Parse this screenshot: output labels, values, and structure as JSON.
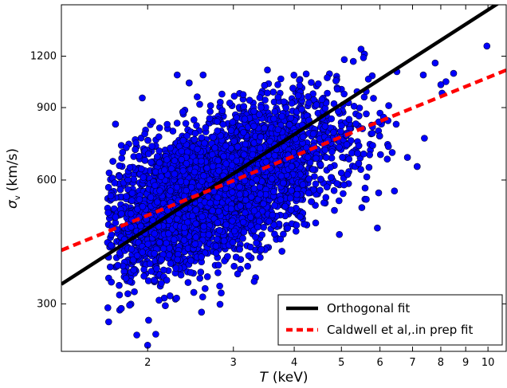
{
  "chart_data": {
    "type": "scatter",
    "title": "",
    "xlabel_symbol": "T",
    "xlabel_unit": "(keV)",
    "ylabel_symbol": "σ",
    "ylabel_sub": "v",
    "ylabel_unit": "(km/s)",
    "x_scale": "log",
    "y_scale": "log",
    "xlim": [
      1.33,
      10.9
    ],
    "ylim": [
      230,
      1600
    ],
    "x_ticks": [
      2,
      3,
      4,
      5,
      6,
      7,
      8,
      9,
      10
    ],
    "x_tick_labels": [
      "2",
      "3",
      "4",
      "5",
      "6",
      "7",
      "8",
      "9",
      "10"
    ],
    "y_ticks": [
      300,
      600,
      900,
      1200
    ],
    "y_tick_labels": [
      "300",
      "600",
      "900",
      "1200"
    ],
    "legend_position": "lower-right",
    "legend": [
      {
        "label": "Orthogonal fit",
        "color": "#000000",
        "style": "solid"
      },
      {
        "label": "Caldwell et al,.in prep fit",
        "color": "#ff0000",
        "style": "dashed"
      }
    ],
    "lines": [
      {
        "name": "Orthogonal fit",
        "color": "#000000",
        "style": "solid",
        "x": [
          1.33,
          10.9
        ],
        "y": [
          335,
          1660
        ]
      },
      {
        "name": "Caldwell et al,.in prep fit",
        "color": "#ff0000",
        "style": "dashed",
        "x": [
          1.33,
          10.9
        ],
        "y": [
          405,
          1110
        ]
      }
    ],
    "scatter_color": "#0000ff",
    "scatter_edge_color": "#000033",
    "scatter_highlights": {
      "x": [
        1.75,
        1.95,
        1.9,
        2.0,
        9.95,
        5.55,
        2.3,
        2.6,
        6.5,
        8.5
      ],
      "y": [
        650,
        950,
        252,
        238,
        1270,
        1190,
        1080,
        1080,
        1100,
        1090
      ]
    },
    "scatter_cloud": {
      "count": 4000,
      "x_log10_mean": 0.44,
      "x_log10_sd": 0.13,
      "x_min": 1.65,
      "x_max": 10.2,
      "y_log10_sd": 0.085,
      "y_min": 250,
      "y_max": 1300,
      "relation": "Caldwell et al,.in prep fit"
    }
  }
}
